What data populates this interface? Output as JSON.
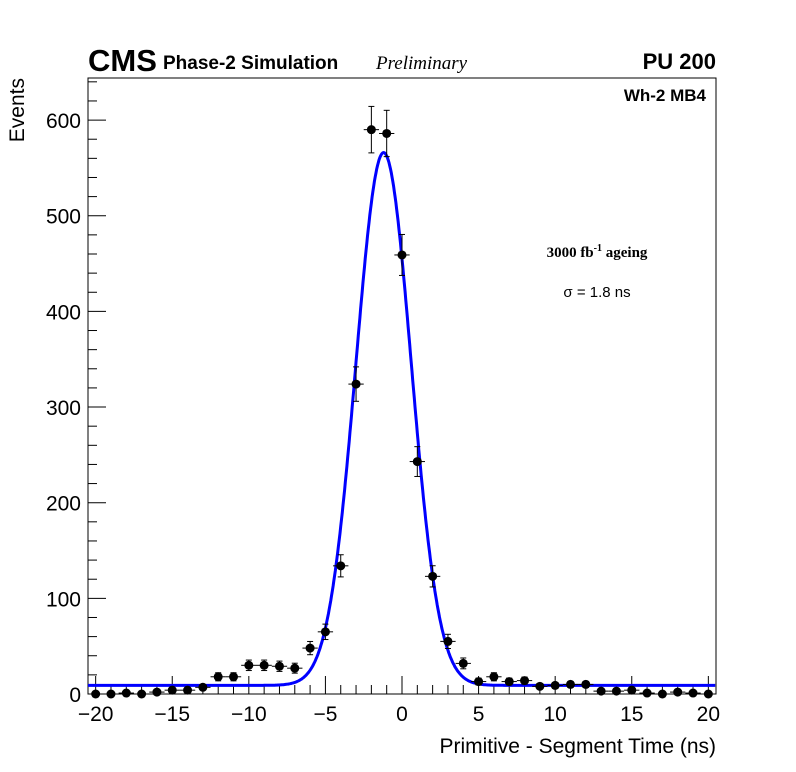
{
  "chart_data": {
    "type": "scatter",
    "title": {
      "experiment": "CMS",
      "subtitle": "Phase-2 Simulation",
      "status": "Preliminary",
      "pileup": "PU 200"
    },
    "chamber_label": "Wh-2 MB4",
    "annotation_ageing": {
      "base": "3000 fb",
      "sup": "-1",
      "tail": " ageing"
    },
    "annotation_sigma": "σ = 1.8 ns",
    "xlabel": "Primitive - Segment Time (ns)",
    "ylabel": "Events",
    "xlim": [
      -20.5,
      20.5
    ],
    "ylim": [
      0,
      644
    ],
    "xticks": [
      -20,
      -15,
      -10,
      -5,
      0,
      5,
      10,
      15,
      20
    ],
    "xtick_labels": [
      "−20",
      "−15",
      "−10",
      "−5",
      "0",
      "5",
      "10",
      "15",
      "20"
    ],
    "yticks": [
      0,
      100,
      200,
      300,
      400,
      500,
      600
    ],
    "ytick_labels": [
      "0",
      "100",
      "200",
      "300",
      "400",
      "500",
      "600"
    ],
    "x": [
      -20,
      -19,
      -18,
      -17,
      -16,
      -15,
      -14,
      -13,
      -12,
      -11,
      -10,
      -9,
      -8,
      -7,
      -6,
      -5,
      -4,
      -3,
      -2,
      -1,
      0,
      1,
      2,
      3,
      4,
      5,
      6,
      7,
      8,
      9,
      10,
      11,
      12,
      13,
      14,
      15,
      16,
      17,
      18,
      19,
      20
    ],
    "y": [
      0,
      0,
      1,
      0,
      2,
      4,
      4,
      7,
      18,
      18,
      30,
      30,
      29,
      27,
      48,
      65,
      134,
      324,
      590,
      586,
      459,
      243,
      123,
      55,
      32,
      13,
      18,
      13,
      14,
      8,
      9,
      10,
      10,
      3,
      3,
      4,
      1,
      0,
      2,
      1,
      0
    ],
    "fit": {
      "type": "gaussian+constant",
      "amplitude": 557,
      "mean": -1.2,
      "sigma": 1.8,
      "constant": 9,
      "color": "#0000ff"
    },
    "marker_color": "#000000"
  }
}
